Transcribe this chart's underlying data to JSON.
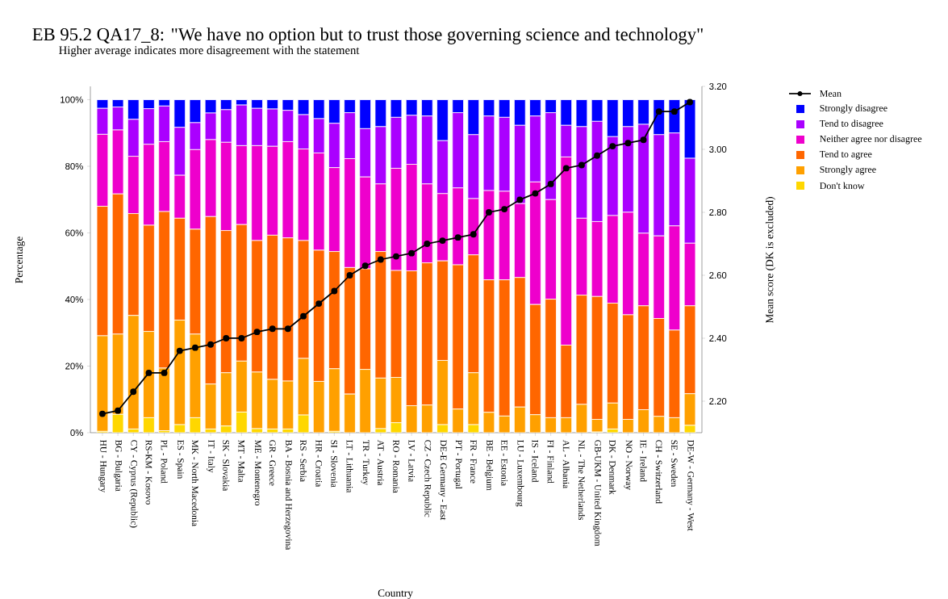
{
  "chart_data": {
    "type": "bar",
    "stacked": true,
    "title": "EB 95.2 QA17_8: \"We have no option but to trust those governing science and technology\"",
    "subtitle": "Higher average indicates more disagreement with the statement",
    "xlabel": "Country",
    "ylabel": "Percentage",
    "y2label": "Mean score (DK is excluded)",
    "categories": [
      "HU - Hungary",
      "BG - Bulgaria",
      "CY - Cyprus (Republic)",
      "RS-KM - Kosovo",
      "PL - Poland",
      "ES - Spain",
      "MK - North Macedonia",
      "IT - Italy",
      "SK - Slovakia",
      "MT - Malta",
      "ME - Montenegro",
      "GR - Greece",
      "BA - Bosnia and Herzegovina",
      "RS - Serbia",
      "HR - Croatia",
      "SI - Slovenia",
      "LT - Lithuania",
      "TR - Turkey",
      "AT - Austria",
      "RO - Romania",
      "LV - Latvia",
      "CZ - Czech Republic",
      "DE-E Germany - East",
      "PT - Portugal",
      "FR - France",
      "BE - Belgium",
      "EE - Estonia",
      "LU - Luxembourg",
      "IS - Iceland",
      "FI - Finland",
      "AL - Albania",
      "NL - The Netherlands",
      "GB-UKM - United Kingdom",
      "DK - Denmark",
      "NO - Norway",
      "IE - Ireland",
      "CH - Switzerland",
      "SE - Sweden",
      "DE-W - Germany - West"
    ],
    "series": [
      {
        "name": "Don't know",
        "color": "#ffd700",
        "values": [
          0.4,
          5.5,
          1.1,
          4.5,
          0.6,
          2.4,
          4.5,
          1.1,
          2.0,
          6.2,
          1.2,
          1.1,
          1.1,
          5.3,
          0,
          0.4,
          0,
          0,
          1.2,
          3.0,
          0,
          0,
          2.4,
          0,
          2.4,
          0,
          0,
          0,
          0,
          0,
          0,
          0,
          0.2,
          1.1,
          0,
          0,
          0,
          0,
          2.2
        ]
      },
      {
        "name": "Strongly agree",
        "color": "#ffa000",
        "values": [
          28.7,
          24.1,
          34.1,
          25.9,
          18.8,
          31.4,
          25.1,
          13.5,
          16.0,
          15.3,
          17.0,
          14.9,
          14.4,
          17.0,
          15.4,
          18.8,
          11.6,
          19.0,
          15.2,
          13.6,
          8.1,
          8.3,
          19.3,
          7.1,
          15.6,
          6.1,
          5.0,
          7.7,
          5.4,
          4.5,
          4.5,
          8.5,
          3.8,
          7.8,
          4.0,
          6.9,
          4.9,
          4.5,
          9.5
        ]
      },
      {
        "name": "Tend to agree",
        "color": "#ff6600",
        "values": [
          38.9,
          42.1,
          30.6,
          31.9,
          47.0,
          30.6,
          31.5,
          50.3,
          42.7,
          41.0,
          39.5,
          43.3,
          43.0,
          35.4,
          39.4,
          35.2,
          38.0,
          30.2,
          38.0,
          32.1,
          40.5,
          42.7,
          29.9,
          43.3,
          35.4,
          39.8,
          40.9,
          38.9,
          33.1,
          35.6,
          21.8,
          32.8,
          36.9,
          30.0,
          31.4,
          31.2,
          29.4,
          26.3,
          26.4
        ]
      },
      {
        "name": "Neither agree nor disagree",
        "color": "#ee00cc",
        "values": [
          21.6,
          19.2,
          17.2,
          24.3,
          21.0,
          12.9,
          23.9,
          23.1,
          26.5,
          23.7,
          28.5,
          26.7,
          28.9,
          27.5,
          29.2,
          25.2,
          32.7,
          27.6,
          20.3,
          30.7,
          32.0,
          23.7,
          20.2,
          23.1,
          16.9,
          26.8,
          26.6,
          22.2,
          36.8,
          29.9,
          56.5,
          23.1,
          22.5,
          26.3,
          30.8,
          21.8,
          24.8,
          31.3,
          18.8
        ]
      },
      {
        "name": "Tend to disagree",
        "color": "#aa00ff",
        "values": [
          7.8,
          6.9,
          11.1,
          10.7,
          10.7,
          14.4,
          8.1,
          8.0,
          9.8,
          12.2,
          11.2,
          11.2,
          9.4,
          10.3,
          10.3,
          13.3,
          13.8,
          14.5,
          17.2,
          15.3,
          14.7,
          20.4,
          15.9,
          22.6,
          19.2,
          22.4,
          22.2,
          23.5,
          19.8,
          26.1,
          9.5,
          27.5,
          30.1,
          23.7,
          25.7,
          32.7,
          30.4,
          27.9,
          25.5
        ]
      },
      {
        "name": "Strongly disagree",
        "color": "#0000ff",
        "values": [
          2.6,
          2.2,
          5.9,
          2.7,
          1.9,
          8.3,
          6.9,
          4.0,
          3.0,
          1.6,
          2.6,
          2.8,
          3.2,
          4.5,
          5.7,
          7.1,
          3.9,
          8.7,
          8.1,
          5.3,
          4.7,
          4.9,
          12.3,
          3.9,
          10.5,
          4.9,
          5.3,
          7.7,
          4.9,
          3.9,
          7.7,
          8.1,
          6.5,
          11.1,
          8.1,
          7.4,
          10.5,
          10.0,
          17.6
        ]
      },
      {
        "name": "Mean",
        "type": "line",
        "axis": "y2",
        "color": "#000000",
        "marker": "circle",
        "values": [
          2.16,
          2.17,
          2.23,
          2.29,
          2.29,
          2.36,
          2.37,
          2.38,
          2.4,
          2.4,
          2.42,
          2.43,
          2.43,
          2.47,
          2.51,
          2.55,
          2.6,
          2.63,
          2.65,
          2.66,
          2.67,
          2.7,
          2.71,
          2.72,
          2.73,
          2.8,
          2.81,
          2.84,
          2.86,
          2.89,
          2.94,
          2.95,
          2.98,
          3.01,
          3.02,
          3.03,
          3.12,
          3.12,
          3.15
        ]
      }
    ],
    "ylim": [
      0,
      104
    ],
    "yticks": [
      {
        "value": 0,
        "label": "0%"
      },
      {
        "value": 20,
        "label": "20%"
      },
      {
        "value": 40,
        "label": "40%"
      },
      {
        "value": 60,
        "label": "60%"
      },
      {
        "value": 80,
        "label": "80%"
      },
      {
        "value": 100,
        "label": "100%"
      }
    ],
    "y2lim": [
      2.1,
      3.2
    ],
    "y2ticks": [
      {
        "value": 2.2,
        "label": "2.20"
      },
      {
        "value": 2.4,
        "label": "2.40"
      },
      {
        "value": 2.6,
        "label": "2.60"
      },
      {
        "value": 2.8,
        "label": "2.80"
      },
      {
        "value": 3.0,
        "label": "3.00"
      },
      {
        "value": 3.2,
        "label": "3.20"
      }
    ],
    "legend": "right"
  }
}
